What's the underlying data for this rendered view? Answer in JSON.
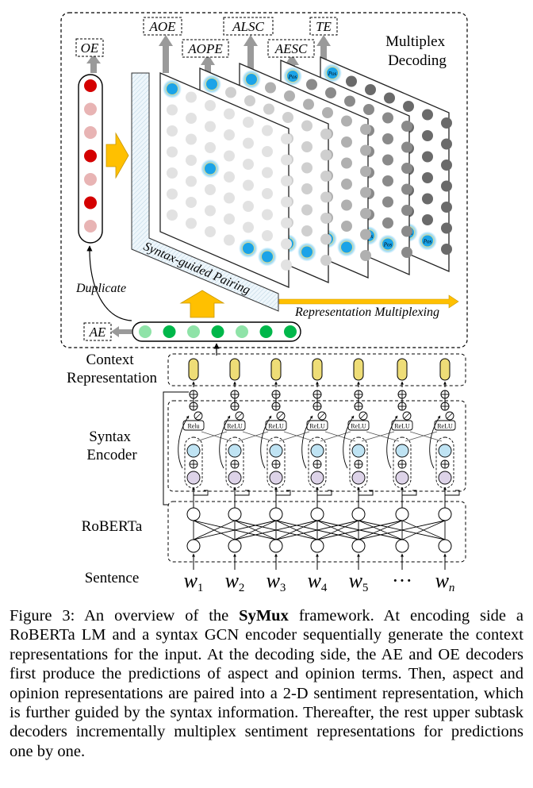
{
  "diagram": {
    "outputs": {
      "oe": "OE",
      "ae": "AE",
      "aoe": "AOE",
      "aope": "AOPE",
      "alsc": "ALSC",
      "aesc": "AESC",
      "te": "TE"
    },
    "multiplex_decoding": [
      "Multiplex",
      "Decoding"
    ],
    "duplicate": "Duplicate",
    "syntax_guided_pairing": "Syntax-guided Pairing",
    "representation_multiplexing": "Representation Multiplexing",
    "pos_tag": "Pos",
    "labels": {
      "context_representation": [
        "Context",
        "Representation"
      ],
      "syntax_encoder": [
        "Syntax",
        "Encoder"
      ],
      "roberta": "RoBERTa",
      "sentence": "Sentence"
    },
    "relu_labels": [
      "Relu",
      "ReLU",
      "ReLU",
      "ReLU",
      "ReLU",
      "ReLU",
      "ReLU"
    ],
    "words": [
      {
        "base": "w",
        "sub": "1"
      },
      {
        "base": "w",
        "sub": "2"
      },
      {
        "base": "w",
        "sub": "3"
      },
      {
        "base": "w",
        "sub": "4"
      },
      {
        "base": "w",
        "sub": "5"
      },
      {
        "base": "···",
        "sub": ""
      },
      {
        "base": "w",
        "sub": "n"
      }
    ],
    "colors": {
      "oe_node_dark": "#d40000",
      "oe_node_light": "#e8b4b4",
      "ae_node_dark": "#00b74a",
      "ae_node_light": "#8fe3a8",
      "highlight": "#1aa3e8",
      "arrow_yellow": "#ffc000",
      "context_node": "#eedd77",
      "gcn_blue": "#bfe3f3",
      "gcn_purple": "#ddd3e8"
    }
  },
  "caption": {
    "prefix": "Figure 3: An overview of the ",
    "bold": "SyMux",
    "rest": " framework. At encoding side a RoBERTa LM and a syntax GCN encoder sequentially generate the context representations for the input. At the decoding side, the AE and OE decoders first produce the predictions of aspect and opinion terms. Then, aspect and opinion representations are paired into a 2-D sentiment representation, which is further guided by the syntax information. Thereafter, the rest upper subtask decoders incrementally multiplex sentiment representations for predictions one by one."
  }
}
